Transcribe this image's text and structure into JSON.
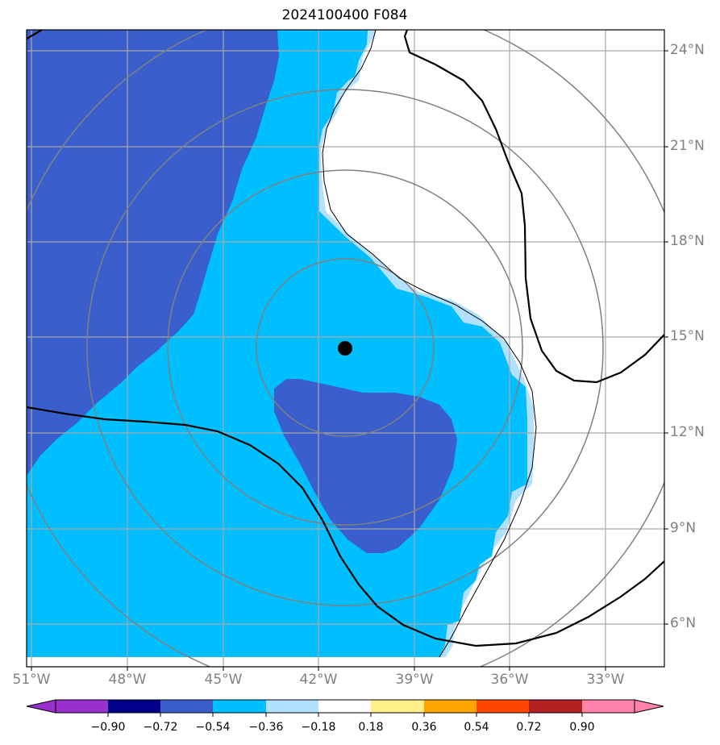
{
  "title": "2024100400 F084",
  "map": {
    "lat_ticks": [
      "24°N",
      "21°N",
      "18°N",
      "15°N",
      "12°N",
      "9°N",
      "6°N"
    ],
    "lon_ticks": [
      "51°W",
      "48°W",
      "45°W",
      "42°W",
      "39°W",
      "36°W",
      "33°W"
    ],
    "storm_center": {
      "lon": -41.1,
      "lat": 14.7
    }
  },
  "colorbar": {
    "labels": [
      "−0.90",
      "−0.72",
      "−0.54",
      "−0.36",
      "−0.18",
      "0.18",
      "0.36",
      "0.54",
      "0.72",
      "0.90"
    ],
    "colors": [
      "#9932cc",
      "#00008b",
      "#3a5fcd",
      "#00bfff",
      "#b0e2ff",
      "#ffffff",
      "#fff08a",
      "#ffa500",
      "#ff4500",
      "#b22222",
      "#ff82ab"
    ]
  },
  "fill_colors": {
    "dark": "#3a5fcd",
    "medium": "#00bfff",
    "light": "#b0e2ff",
    "grid": "#a9a9a9",
    "rings": "#808080"
  }
}
